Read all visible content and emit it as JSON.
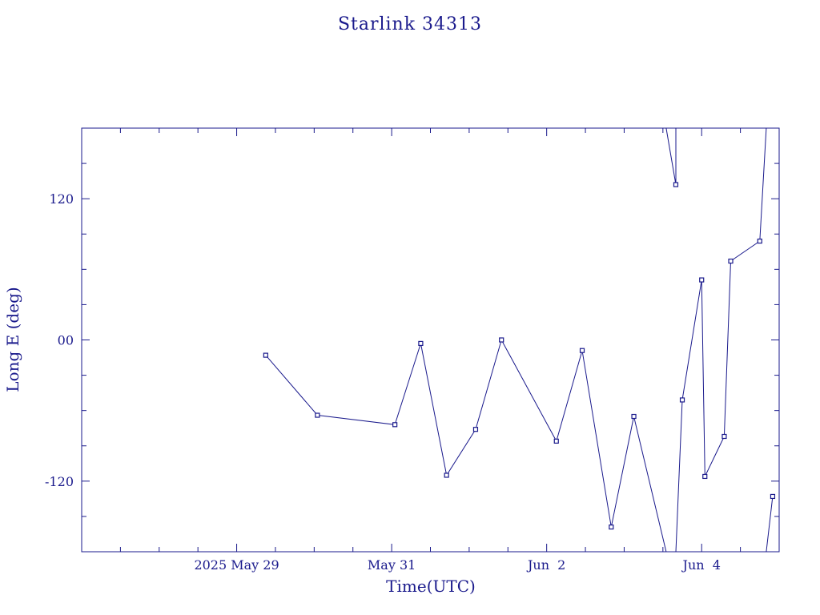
{
  "chart_data": {
    "type": "line",
    "title": "Starlink 34313",
    "xlabel": "Time(UTC)",
    "ylabel": "Long E (deg)",
    "xlim": [
      "2025-05-27T00:00:00",
      "2025-06-05T00:00:00"
    ],
    "ylim": [
      -180,
      180
    ],
    "xticks": [
      {
        "label": "2025 May 29",
        "x": "2025-05-29T00:00:00"
      },
      {
        "label": "May 31",
        "x": "2025-05-31T00:00:00"
      },
      {
        "label": "Jun  2",
        "x": "2025-06-02T00:00:00"
      },
      {
        "label": "Jun  4",
        "x": "2025-06-04T00:00:00"
      }
    ],
    "yticks": [
      {
        "label": "120",
        "y": 120
      },
      {
        "label": "00",
        "y": 0
      },
      {
        "label": "-120",
        "y": -120
      }
    ],
    "x_minor_step_hours": 12,
    "y_minor_step": 30,
    "grid": false,
    "legend": "none",
    "color": "#1a1a8c",
    "segments": [
      [
        {
          "t": "2025-05-29T09:00:00",
          "lon": -13
        },
        {
          "t": "2025-05-30T01:00:00",
          "lon": -64
        },
        {
          "t": "2025-05-31T01:00:00",
          "lon": -72
        },
        {
          "t": "2025-05-31T09:00:00",
          "lon": -3
        },
        {
          "t": "2025-05-31T17:00:00",
          "lon": -115
        },
        {
          "t": "2025-06-01T02:00:00",
          "lon": -76
        },
        {
          "t": "2025-06-01T10:00:00",
          "lon": 0
        },
        {
          "t": "2025-06-02T03:00:00",
          "lon": -86
        },
        {
          "t": "2025-06-02T11:00:00",
          "lon": -9
        },
        {
          "t": "2025-06-02T20:00:00",
          "lon": -159
        },
        {
          "t": "2025-06-03T03:00:00",
          "lon": -65
        },
        {
          "t": "2025-06-03T13:00:00",
          "lon": -180
        }
      ],
      [
        {
          "t": "2025-06-03T13:00:00",
          "lon": 180
        },
        {
          "t": "2025-06-03T16:00:00",
          "lon": 132
        },
        {
          "t": "2025-06-03T16:00:00",
          "lon": 180
        }
      ],
      [
        {
          "t": "2025-06-03T16:00:00",
          "lon": -180
        },
        {
          "t": "2025-06-03T18:00:00",
          "lon": -51
        },
        {
          "t": "2025-06-04T00:00:00",
          "lon": 51
        },
        {
          "t": "2025-06-04T01:00:00",
          "lon": -116
        },
        {
          "t": "2025-06-04T07:00:00",
          "lon": -82
        },
        {
          "t": "2025-06-04T09:00:00",
          "lon": 67
        },
        {
          "t": "2025-06-04T18:00:00",
          "lon": 84
        },
        {
          "t": "2025-06-04T20:00:00",
          "lon": 180
        }
      ],
      [
        {
          "t": "2025-06-04T20:00:00",
          "lon": -180
        },
        {
          "t": "2025-06-04T22:00:00",
          "lon": -133
        }
      ]
    ],
    "points": [
      {
        "t": "2025-05-29T09:00:00",
        "lon": -13
      },
      {
        "t": "2025-05-30T01:00:00",
        "lon": -64
      },
      {
        "t": "2025-05-31T01:00:00",
        "lon": -72
      },
      {
        "t": "2025-05-31T09:00:00",
        "lon": -3
      },
      {
        "t": "2025-05-31T17:00:00",
        "lon": -115
      },
      {
        "t": "2025-06-01T02:00:00",
        "lon": -76
      },
      {
        "t": "2025-06-01T10:00:00",
        "lon": 0
      },
      {
        "t": "2025-06-02T03:00:00",
        "lon": -86
      },
      {
        "t": "2025-06-02T11:00:00",
        "lon": -9
      },
      {
        "t": "2025-06-02T20:00:00",
        "lon": -159
      },
      {
        "t": "2025-06-03T03:00:00",
        "lon": -65
      },
      {
        "t": "2025-06-03T16:00:00",
        "lon": 132
      },
      {
        "t": "2025-06-03T18:00:00",
        "lon": -51
      },
      {
        "t": "2025-06-04T00:00:00",
        "lon": 51
      },
      {
        "t": "2025-06-04T01:00:00",
        "lon": -116
      },
      {
        "t": "2025-06-04T07:00:00",
        "lon": -82
      },
      {
        "t": "2025-06-04T09:00:00",
        "lon": 67
      },
      {
        "t": "2025-06-04T18:00:00",
        "lon": 84
      },
      {
        "t": "2025-06-04T22:00:00",
        "lon": -133
      }
    ]
  }
}
